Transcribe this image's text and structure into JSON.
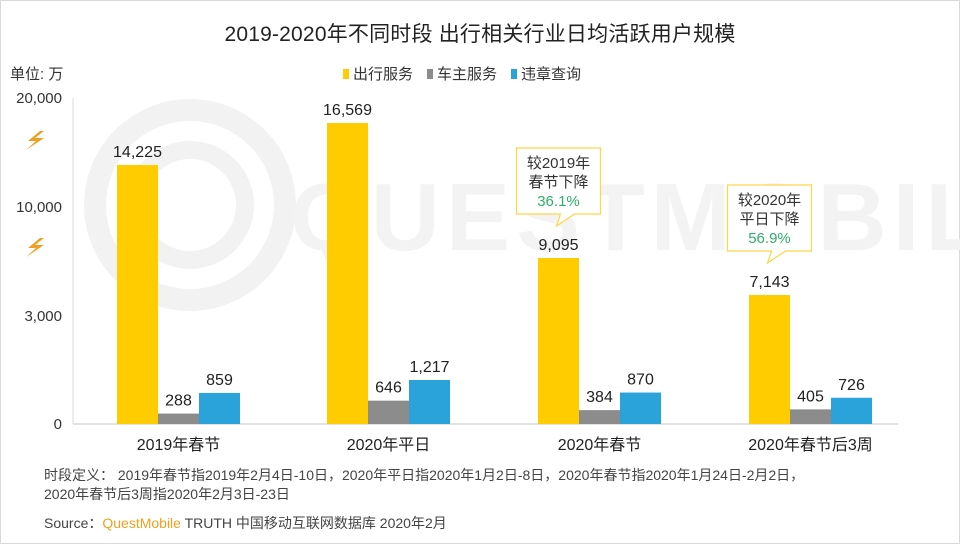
{
  "title": "2019-2020年不同时段 出行相关行业日均活跃用户规模",
  "unit_label": "单位: 万",
  "watermark": "QUESTMOBILE",
  "footnote": {
    "definition_line1": "时段定义： 2019年春节指2019年2月4日-10日，2020年平日指2020年1月2日-8日，2020年春节指2020年1月24日-2月2日，",
    "definition_line2": "2020年春节后3周指2020年2月3日-23日",
    "source_prefix": "Source：",
    "source_brand": "QuestMobile",
    "source_rest": " TRUTH 中国移动互联网数据库 2020年2月"
  },
  "chart_data": {
    "type": "bar",
    "title": "2019-2020年不同时段 出行相关行业日均活跃用户规模",
    "xlabel": "",
    "ylabel": "单位: 万",
    "ylim": [
      0,
      20000
    ],
    "y_ticks": [
      "0",
      "3,000",
      "10,000",
      "20,000"
    ],
    "y_tick_values": [
      0,
      3000,
      10000,
      20000
    ],
    "axis_break": true,
    "axis_break_icon": "lightning-icon",
    "grid": false,
    "legend_position": "top-center",
    "categories": [
      "2019年春节",
      "2020年平日",
      "2020年春节",
      "2020年春节后3周"
    ],
    "series": [
      {
        "name": "出行服务",
        "color": "#ffcc00",
        "values": [
          14225,
          16569,
          9095,
          7143
        ],
        "labels": [
          "14,225",
          "16,569",
          "9,095",
          "7,143"
        ]
      },
      {
        "name": "车主服务",
        "color": "#8c8c8c",
        "values": [
          288,
          646,
          384,
          405
        ],
        "labels": [
          "288",
          "646",
          "384",
          "405"
        ]
      },
      {
        "name": "违章查询",
        "color": "#29a3d9",
        "values": [
          859,
          1217,
          870,
          726
        ],
        "labels": [
          "859",
          "1,217",
          "870",
          "726"
        ]
      }
    ],
    "annotations": [
      {
        "category": "2020年春节",
        "series": "出行服务",
        "line1": "较2019年",
        "line2": "春节下降",
        "pct": "36.1%"
      },
      {
        "category": "2020年春节后3周",
        "series": "出行服务",
        "line1": "较2020年",
        "line2": "平日下降",
        "pct": "56.9%"
      }
    ]
  }
}
